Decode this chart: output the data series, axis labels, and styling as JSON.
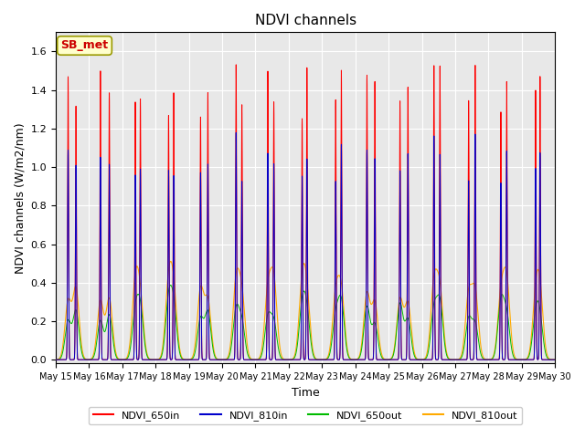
{
  "title": "NDVI channels",
  "xlabel": "Time",
  "ylabel": "NDVI channels (W/m2/nm)",
  "ylim": [
    -0.02,
    1.7
  ],
  "xlim_days": [
    15,
    30
  ],
  "colors": {
    "NDVI_650in": "#ff0000",
    "NDVI_810in": "#0000cc",
    "NDVI_650out": "#00bb00",
    "NDVI_810out": "#ffaa00"
  },
  "legend_labels": [
    "NDVI_650in",
    "NDVI_810in",
    "NDVI_650out",
    "NDVI_810out"
  ],
  "annotation_text": "SB_met",
  "annotation_color": "#cc0000",
  "annotation_bg": "#ffffcc",
  "background_color": "#e8e8e8",
  "yticks": [
    0.0,
    0.2,
    0.4,
    0.6,
    0.8,
    1.0,
    1.2,
    1.4,
    1.6
  ],
  "xtick_labels": [
    "May 15",
    "May 16",
    "May 17",
    "May 18",
    "May 19",
    "May 20",
    "May 21",
    "May 22",
    "May 23",
    "May 24",
    "May 25",
    "May 26",
    "May 27",
    "May 28",
    "May 29",
    "May 30"
  ],
  "n_points": 8640,
  "figsize": [
    6.4,
    4.8
  ],
  "dpi": 100
}
